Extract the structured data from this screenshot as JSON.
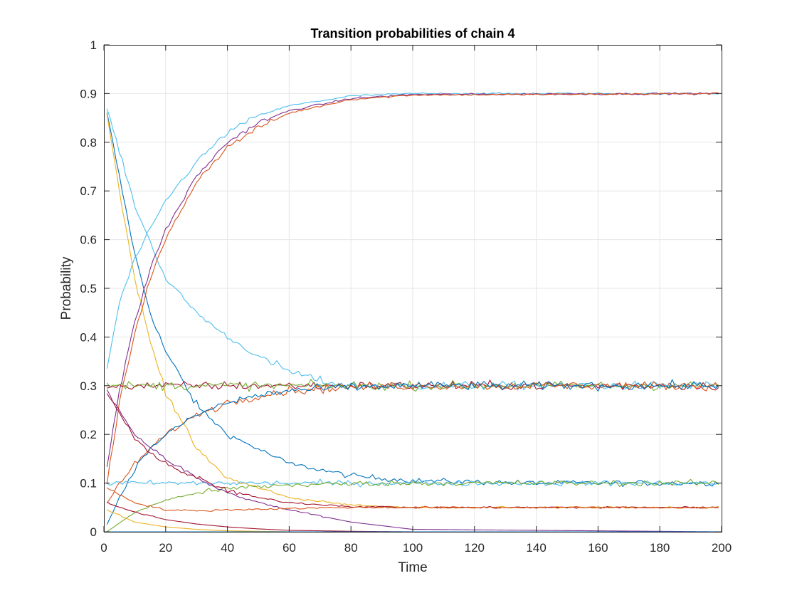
{
  "chart_data": {
    "type": "line",
    "title": "Transition probabilities of chain 4",
    "xlabel": "Time",
    "ylabel": "Probability",
    "xlim": [
      0,
      200
    ],
    "ylim": [
      0,
      1
    ],
    "xticks": [
      0,
      20,
      40,
      60,
      80,
      100,
      120,
      140,
      160,
      180,
      200
    ],
    "yticks": [
      0,
      0.1,
      0.2,
      0.3,
      0.4,
      0.5,
      0.6,
      0.7,
      0.8,
      0.9,
      1
    ],
    "xtick_labels": [
      "0",
      "20",
      "40",
      "60",
      "80",
      "100",
      "120",
      "140",
      "160",
      "180",
      "200"
    ],
    "ytick_labels": [
      "0",
      "0.1",
      "0.2",
      "0.3",
      "0.4",
      "0.5",
      "0.6",
      "0.7",
      "0.8",
      "0.9",
      "1"
    ],
    "grid": true,
    "x_start": 1,
    "x_end": 199,
    "series": [
      {
        "color": "#0072BD",
        "x": [
          1,
          5,
          10,
          15,
          20,
          30,
          40,
          60,
          80,
          100,
          140,
          199
        ],
        "y": [
          0.86,
          0.73,
          0.57,
          0.45,
          0.37,
          0.26,
          0.2,
          0.14,
          0.115,
          0.105,
          0.1,
          0.1
        ]
      },
      {
        "color": "#EDB120",
        "x": [
          1,
          5,
          10,
          15,
          20,
          30,
          40,
          60,
          80,
          100,
          140,
          199
        ],
        "y": [
          0.86,
          0.7,
          0.52,
          0.39,
          0.29,
          0.17,
          0.11,
          0.07,
          0.055,
          0.05,
          0.05,
          0.05
        ]
      },
      {
        "color": "#4DBEEE",
        "x": [
          1,
          10,
          20,
          30,
          40,
          50,
          60,
          70,
          80,
          100,
          140,
          199
        ],
        "y": [
          0.87,
          0.67,
          0.52,
          0.45,
          0.4,
          0.36,
          0.33,
          0.31,
          0.3,
          0.3,
          0.3,
          0.3
        ]
      },
      {
        "color": "#4DBEEE",
        "x": [
          1,
          5,
          10,
          20,
          30,
          40,
          50,
          60,
          80,
          100,
          140,
          199
        ],
        "y": [
          0.335,
          0.47,
          0.56,
          0.68,
          0.76,
          0.82,
          0.855,
          0.875,
          0.895,
          0.9,
          0.9,
          0.9
        ]
      },
      {
        "color": "#7E2F8E",
        "x": [
          1,
          5,
          10,
          15,
          20,
          30,
          40,
          50,
          60,
          80,
          100,
          199
        ],
        "y": [
          0.135,
          0.29,
          0.43,
          0.54,
          0.62,
          0.73,
          0.8,
          0.84,
          0.865,
          0.89,
          0.898,
          0.9
        ]
      },
      {
        "color": "#D95319",
        "x": [
          1,
          5,
          10,
          15,
          20,
          30,
          40,
          50,
          60,
          80,
          100,
          199
        ],
        "y": [
          0.1,
          0.26,
          0.41,
          0.52,
          0.6,
          0.72,
          0.79,
          0.83,
          0.86,
          0.888,
          0.897,
          0.9
        ]
      },
      {
        "color": "#A2142F",
        "x": [
          1,
          10,
          20,
          30,
          40,
          60,
          80,
          100,
          199
        ],
        "y": [
          0.3,
          0.3,
          0.3,
          0.3,
          0.3,
          0.3,
          0.3,
          0.3,
          0.3
        ]
      },
      {
        "color": "#77AC30",
        "x": [
          1,
          10,
          20,
          30,
          40,
          60,
          80,
          100,
          199
        ],
        "y": [
          0.3,
          0.3,
          0.3,
          0.3,
          0.3,
          0.3,
          0.3,
          0.3,
          0.3
        ]
      },
      {
        "color": "#D95319",
        "x": [
          1,
          10,
          20,
          30,
          40,
          50,
          60,
          80,
          100,
          199
        ],
        "y": [
          0.06,
          0.14,
          0.2,
          0.24,
          0.265,
          0.28,
          0.29,
          0.297,
          0.3,
          0.3
        ]
      },
      {
        "color": "#0072BD",
        "x": [
          1,
          5,
          10,
          15,
          20,
          30,
          40,
          50,
          60,
          80,
          100,
          199
        ],
        "y": [
          0.015,
          0.07,
          0.13,
          0.17,
          0.2,
          0.24,
          0.265,
          0.28,
          0.29,
          0.297,
          0.3,
          0.3
        ]
      },
      {
        "color": "#4DBEEE",
        "x": [
          1,
          20,
          40,
          60,
          80,
          100,
          140,
          199
        ],
        "y": [
          0.1,
          0.1,
          0.1,
          0.1,
          0.1,
          0.1,
          0.1,
          0.1
        ]
      },
      {
        "color": "#77AC30",
        "x": [
          1,
          10,
          20,
          30,
          40,
          50,
          60,
          80,
          100,
          199
        ],
        "y": [
          0.0,
          0.04,
          0.065,
          0.08,
          0.088,
          0.093,
          0.096,
          0.099,
          0.1,
          0.1
        ]
      },
      {
        "color": "#7E2F8E",
        "x": [
          1,
          10,
          20,
          30,
          40,
          50,
          60,
          80,
          100,
          199
        ],
        "y": [
          0.29,
          0.2,
          0.15,
          0.11,
          0.08,
          0.06,
          0.045,
          0.02,
          0.005,
          0.0
        ]
      },
      {
        "color": "#A2142F",
        "x": [
          1,
          10,
          20,
          30,
          40,
          50,
          60,
          80,
          100,
          199
        ],
        "y": [
          0.285,
          0.19,
          0.14,
          0.11,
          0.085,
          0.07,
          0.06,
          0.052,
          0.05,
          0.05
        ]
      },
      {
        "color": "#D95319",
        "x": [
          1,
          10,
          20,
          30,
          40,
          60,
          80,
          100,
          199
        ],
        "y": [
          0.09,
          0.06,
          0.045,
          0.043,
          0.045,
          0.048,
          0.05,
          0.05,
          0.05
        ]
      },
      {
        "color": "#A2142F",
        "x": [
          1,
          10,
          20,
          30,
          40,
          50,
          60,
          80,
          100,
          199
        ],
        "y": [
          0.06,
          0.04,
          0.025,
          0.016,
          0.01,
          0.006,
          0.003,
          0.001,
          0.0,
          0.0
        ]
      },
      {
        "color": "#EDB120",
        "x": [
          1,
          10,
          20,
          30,
          40,
          60,
          80,
          100,
          199
        ],
        "y": [
          0.045,
          0.02,
          0.01,
          0.005,
          0.002,
          0.0,
          0.0,
          0.0,
          0.0
        ]
      },
      {
        "color": "#0072BD",
        "x": [
          1,
          40,
          80,
          120,
          199
        ],
        "y": [
          0.0,
          0.0,
          0.0,
          0.0,
          0.0
        ]
      }
    ]
  }
}
